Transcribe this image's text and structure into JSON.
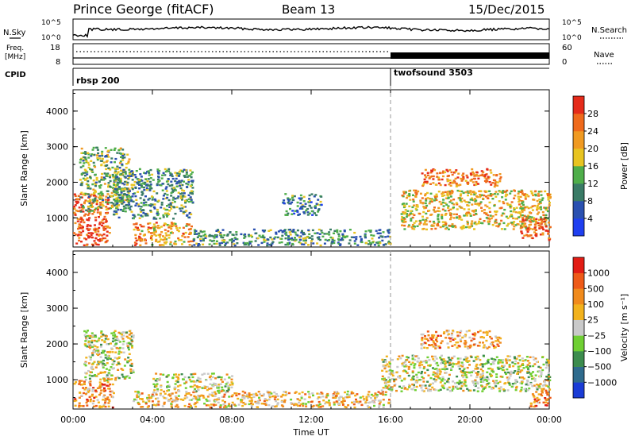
{
  "header": {
    "site": "Prince George (fitACF)",
    "beam": "Beam 13",
    "date": "15/Dec/2015"
  },
  "nsky_panel": {
    "left_label": "N.Sky",
    "right_label": "N.Search",
    "left_ticks": [
      "10^5",
      "10^0"
    ],
    "right_ticks": [
      "10^5",
      "10^0"
    ]
  },
  "freq_panel": {
    "left_label_1": "Freq.",
    "left_label_2": "[MHz]",
    "right_label": "Nave",
    "left_ticks": [
      "18",
      "8"
    ],
    "right_ticks": [
      "60",
      "0"
    ]
  },
  "cpid_panel": {
    "label": "CPID",
    "programs": [
      {
        "name": "rbsp 200",
        "start_hour": 0
      },
      {
        "name": "twofsound 3503",
        "start_hour": 16
      }
    ]
  },
  "chart_data": [
    {
      "type": "heatmap",
      "parameter": "power",
      "ylabel": "Slant Range [km]",
      "yticks": [
        "1000",
        "2000",
        "3000",
        "4000"
      ],
      "ylim": [
        180,
        4600
      ],
      "colorbar_label": "Power [dB]",
      "colorbar_ticks": [
        "4",
        "8",
        "12",
        "16",
        "20",
        "24",
        "28"
      ],
      "colorbar_colors": [
        "#1f3ff0",
        "#2a50b0",
        "#3a7b66",
        "#4fae4a",
        "#e8c421",
        "#f09a22",
        "#ef6a1c",
        "#e52b1a"
      ],
      "regions": [
        {
          "t0": 0.0,
          "t1": 1.8,
          "r0": 250,
          "r1": 1700,
          "level": 0.9
        },
        {
          "t0": 0.3,
          "t1": 2.8,
          "r0": 1200,
          "r1": 3000,
          "level": 0.45
        },
        {
          "t0": 2.0,
          "t1": 6.0,
          "r0": 1000,
          "r1": 2400,
          "level": 0.35
        },
        {
          "t0": 3.0,
          "t1": 6.0,
          "r0": 250,
          "r1": 900,
          "level": 0.7
        },
        {
          "t0": 6.0,
          "t1": 16.0,
          "r0": 250,
          "r1": 700,
          "level": 0.35
        },
        {
          "t0": 10.5,
          "t1": 12.5,
          "r0": 1100,
          "r1": 1700,
          "level": 0.3
        },
        {
          "t0": 16.5,
          "t1": 24.0,
          "r0": 700,
          "r1": 1800,
          "level": 0.6
        },
        {
          "t0": 17.5,
          "t1": 21.5,
          "r0": 1900,
          "r1": 2400,
          "level": 0.8
        },
        {
          "t0": 22.5,
          "t1": 24.0,
          "r0": 400,
          "r1": 1000,
          "level": 0.85
        }
      ]
    },
    {
      "type": "heatmap",
      "parameter": "velocity",
      "xlabel": "Time UT",
      "ylabel": "Slant Range [km]",
      "xticks": [
        "00:00",
        "04:00",
        "08:00",
        "12:00",
        "16:00",
        "20:00",
        "00:00"
      ],
      "yticks": [
        "1000",
        "2000",
        "3000",
        "4000"
      ],
      "ylim": [
        180,
        4600
      ],
      "colorbar_label": "Velocity [m s⁻¹]",
      "colorbar_ticks": [
        "1000",
        "500",
        "100",
        "25",
        "−25",
        "−100",
        "−500",
        "−1000"
      ],
      "colorbar_colors": [
        "#1a3cd6",
        "#2f6b8d",
        "#3c8c4e",
        "#6fcf33",
        "#c9c9c9",
        "#f2b21d",
        "#f08a1c",
        "#ee5a18",
        "#e21c14"
      ],
      "regions": [
        {
          "t0": 0.0,
          "t1": 2.0,
          "r0": 250,
          "r1": 1000,
          "level": 0.7
        },
        {
          "t0": 0.5,
          "t1": 3.0,
          "r0": 1000,
          "r1": 2400,
          "level": 0.5
        },
        {
          "t0": 3.0,
          "t1": 16.0,
          "r0": 250,
          "r1": 700,
          "level": 0.62
        },
        {
          "t0": 4.0,
          "t1": 8.0,
          "r0": 700,
          "r1": 1200,
          "level": 0.5
        },
        {
          "t0": 15.5,
          "t1": 24.0,
          "r0": 700,
          "r1": 1700,
          "level": 0.5
        },
        {
          "t0": 17.5,
          "t1": 21.5,
          "r0": 1900,
          "r1": 2400,
          "level": 0.7
        },
        {
          "t0": 23.0,
          "t1": 24.0,
          "r0": 250,
          "r1": 800,
          "level": 0.72
        }
      ]
    }
  ]
}
